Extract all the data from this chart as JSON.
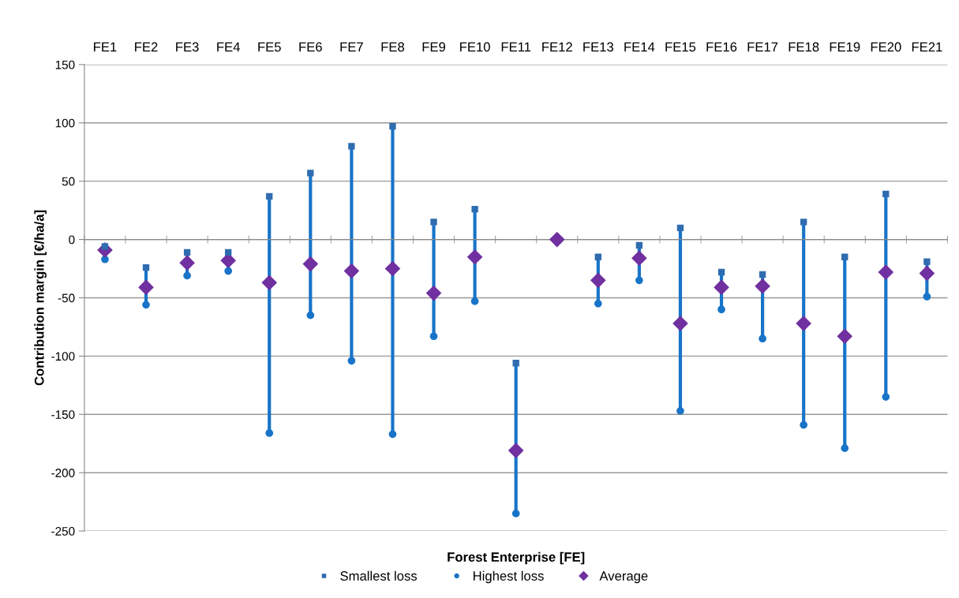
{
  "chart_data": {
    "type": "scatter",
    "categories": [
      "FE1",
      "FE2",
      "FE3",
      "FE4",
      "FE5",
      "FE6",
      "FE7",
      "FE8",
      "FE9",
      "FE10",
      "FE11",
      "FE12",
      "FE13",
      "FE14",
      "FE15",
      "FE16",
      "FE17",
      "FE18",
      "FE19",
      "FE20",
      "FE21"
    ],
    "xlabel": "Forest Enterprise [FE]",
    "ylabel": "Contribution margin [€/ha/a]",
    "ylim": [
      -250,
      150
    ],
    "yticks": [
      -250,
      -200,
      -150,
      -100,
      -50,
      0,
      50,
      100,
      150
    ],
    "grid": "y",
    "legend": "bottom",
    "series": [
      {
        "name": "Smallest loss",
        "color": "#2f6cb0",
        "marker": "square",
        "values": [
          -6,
          -24,
          -11,
          -11,
          37,
          57,
          80,
          97,
          15,
          26,
          -106,
          null,
          -15,
          -5,
          10,
          -28,
          -30,
          15,
          -15,
          39,
          -19
        ]
      },
      {
        "name": "Highest loss",
        "color": "#1874c8",
        "marker": "circle",
        "values": [
          -17,
          -56,
          -31,
          -27,
          -166,
          -65,
          -104,
          -167,
          -83,
          -53,
          -235,
          null,
          -55,
          -35,
          -147,
          -60,
          -85,
          -159,
          -179,
          -135,
          -49
        ]
      },
      {
        "name": "Average",
        "color": "#7030a0",
        "marker": "diamond",
        "values": [
          -9,
          -41,
          -20,
          -18,
          -37,
          -21,
          -27,
          -25,
          -46,
          -15,
          -181,
          0,
          -35,
          -16,
          -72,
          -41,
          -40,
          -72,
          -83,
          -28,
          -29
        ]
      }
    ]
  }
}
